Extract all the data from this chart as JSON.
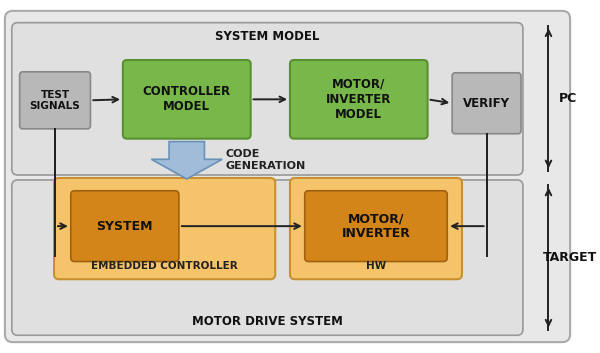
{
  "fig_width": 6.0,
  "fig_height": 3.53,
  "bg_white": "#ffffff",
  "bg_light_gray": "#e8e8e8",
  "green_fill": "#78b84a",
  "green_edge": "#5a9030",
  "gray_fill": "#b8b8b8",
  "gray_edge": "#888888",
  "orange_outer_fill": "#f5c46a",
  "orange_outer_edge": "#c89030",
  "orange_inner_fill": "#d4851a",
  "orange_inner_edge": "#a06010",
  "blue_arrow_fill": "#a0bcd8",
  "blue_arrow_edge": "#6890b8",
  "line_color": "#222222",
  "text_dark": "#111111",
  "system_model_label": "SYSTEM MODEL",
  "motor_drive_label": "MOTOR DRIVE SYSTEM",
  "pc_label": "PC",
  "target_label": "TARGET",
  "test_signals_label": "TEST\nSIGNALS",
  "controller_model_label": "CONTROLLER\nMODEL",
  "motor_inverter_model_label": "MOTOR/\nINVERTER\nMODEL",
  "verify_label": "VERIFY",
  "code_gen_label": "CODE\nGENERATION",
  "system_label": "SYSTEM",
  "motor_inverter_label": "MOTOR/\nINVERTER",
  "embedded_controller_label": "EMBEDDED CONTROLLER",
  "hw_label": "HW"
}
